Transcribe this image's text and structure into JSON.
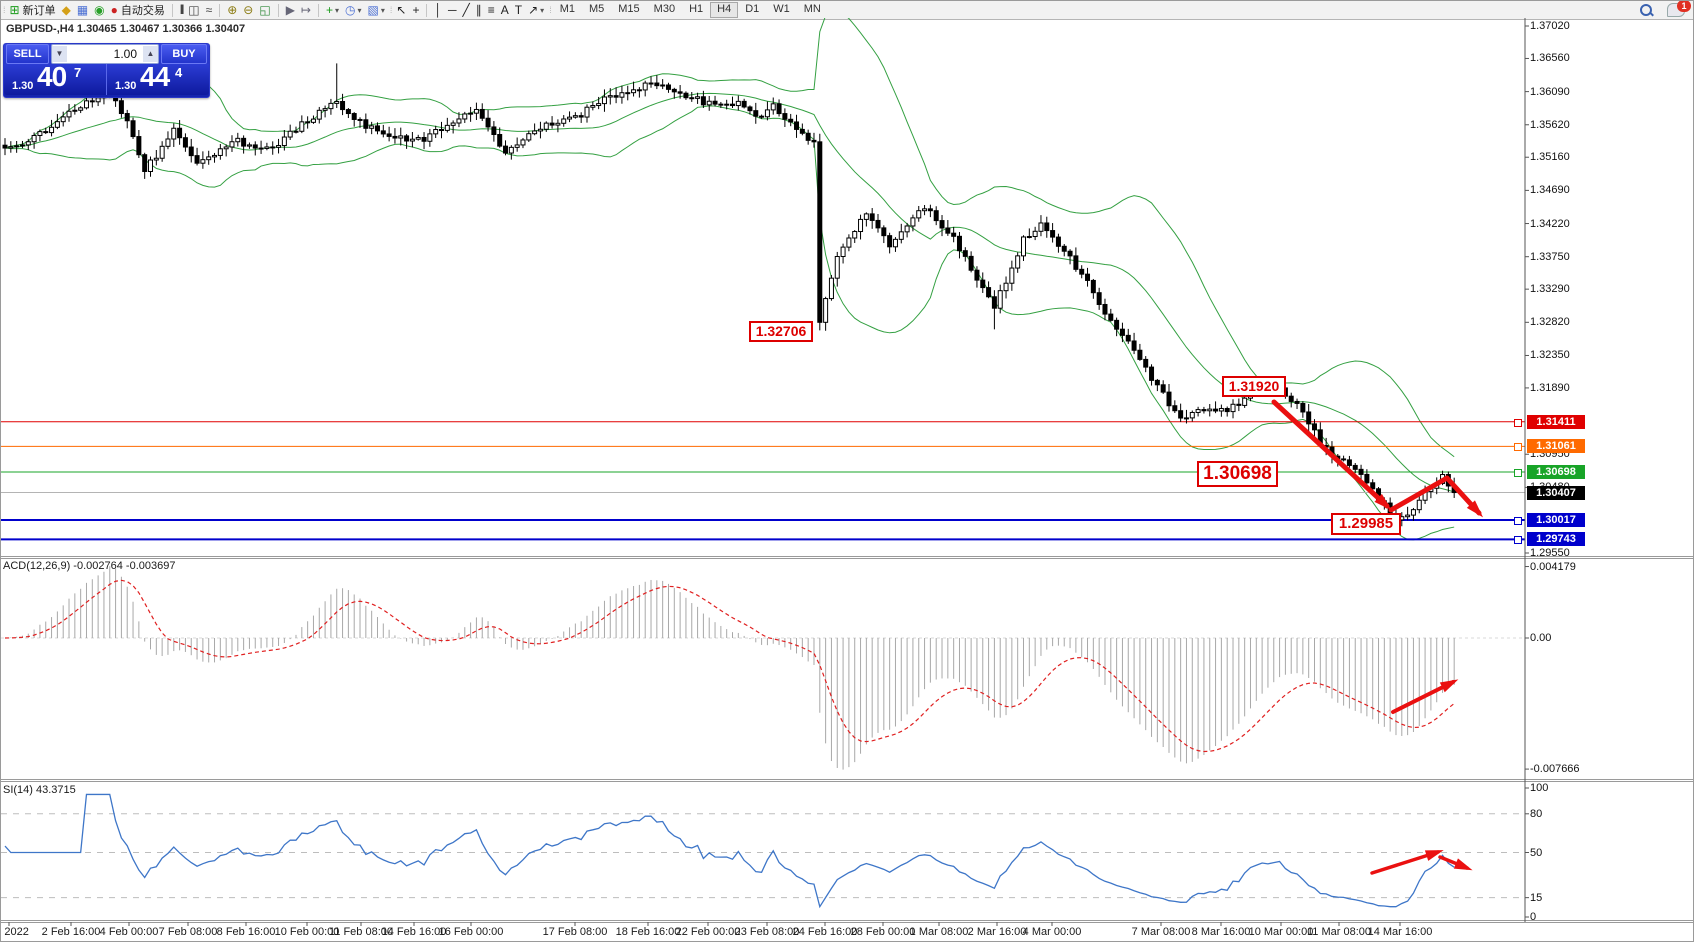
{
  "toolbar": {
    "items": [
      {
        "name": "toolbar-handle",
        "type": "handle"
      },
      {
        "name": "new-order-button",
        "glyph": "⊞",
        "color": "#1a9c1a",
        "label": "新订单",
        "interactable": true
      },
      {
        "name": "styles-button",
        "glyph": "◆",
        "color": "#d4a017",
        "interactable": true
      },
      {
        "name": "new-chart-button",
        "glyph": "▦",
        "color": "#4a6fd4",
        "interactable": true
      },
      {
        "name": "signals-button",
        "glyph": "◉",
        "color": "#28a028",
        "interactable": true
      },
      {
        "name": "autotrade-button",
        "glyph": "●",
        "color": "#cc2222",
        "label": "自动交易",
        "interactable": true
      },
      {
        "name": "toolbar-separator",
        "type": "sep"
      },
      {
        "name": "bar-chart-button",
        "glyph": "|||",
        "color": "#444",
        "interactable": true
      },
      {
        "name": "candle-chart-button",
        "glyph": "◫",
        "color": "#444",
        "interactable": true
      },
      {
        "name": "line-chart-button",
        "glyph": "≈",
        "color": "#444",
        "interactable": true
      },
      {
        "name": "toolbar-separator",
        "type": "sep"
      },
      {
        "name": "zoom-in-button",
        "glyph": "⊕",
        "color": "#8a7a10",
        "interactable": true
      },
      {
        "name": "zoom-out-button",
        "glyph": "⊖",
        "color": "#8a7a10",
        "interactable": true
      },
      {
        "name": "tile-windows-button",
        "glyph": "◱",
        "color": "#2f8a3a",
        "interactable": true
      },
      {
        "name": "toolbar-separator",
        "type": "sep"
      },
      {
        "name": "auto-scroll-button",
        "glyph": "▶",
        "color": "#667",
        "interactable": true
      },
      {
        "name": "chart-shift-button",
        "glyph": "↦",
        "color": "#667",
        "interactable": true
      },
      {
        "name": "toolbar-separator",
        "type": "sep"
      },
      {
        "name": "indicators-button",
        "glyph": "+",
        "color": "#1a9c1a",
        "dropdown": true,
        "interactable": true
      },
      {
        "name": "periods-button",
        "glyph": "◷",
        "color": "#4a6fd4",
        "dropdown": true,
        "interactable": true
      },
      {
        "name": "templates-button",
        "glyph": "▧",
        "color": "#4a6fd4",
        "dropdown": true,
        "interactable": true
      },
      {
        "name": "toolbar-handle",
        "type": "handle"
      },
      {
        "name": "cursor-button",
        "glyph": "↖",
        "color": "#222",
        "interactable": true
      },
      {
        "name": "crosshair-button",
        "glyph": "+",
        "color": "#222",
        "interactable": true
      },
      {
        "name": "toolbar-separator",
        "type": "sep"
      },
      {
        "name": "vertical-line-button",
        "glyph": "│",
        "color": "#222",
        "interactable": true
      },
      {
        "name": "horizontal-line-button",
        "glyph": "─",
        "color": "#222",
        "interactable": true
      },
      {
        "name": "trendline-button",
        "glyph": "╱",
        "color": "#222",
        "interactable": true
      },
      {
        "name": "channel-button",
        "glyph": "∥",
        "color": "#222",
        "interactable": true
      },
      {
        "name": "fibonacci-button",
        "glyph": "≡",
        "color": "#222",
        "interactable": true
      },
      {
        "name": "text-button",
        "glyph": "A",
        "color": "#222",
        "interactable": true
      },
      {
        "name": "text-label-button",
        "glyph": "T",
        "color": "#222",
        "interactable": true
      },
      {
        "name": "arrows-button",
        "glyph": "↗",
        "color": "#222",
        "dropdown": true,
        "interactable": true
      },
      {
        "name": "toolbar-handle",
        "type": "handle"
      }
    ],
    "timeframes": [
      "M1",
      "M5",
      "M15",
      "M30",
      "H1",
      "H4",
      "D1",
      "W1",
      "MN"
    ],
    "active_timeframe": "H4",
    "notification_count": "1"
  },
  "chart_header": {
    "title": "GBPUSD-,H4  1.30465 1.30467 1.30366 1.30407"
  },
  "trade_panel": {
    "sell_label": "SELL",
    "buy_label": "BUY",
    "volume": "1.00",
    "sell_price": {
      "prefix": "1.30",
      "big": "40",
      "sup": "7"
    },
    "buy_price": {
      "prefix": "1.30",
      "big": "44",
      "sup": "4"
    }
  },
  "chart_data": {
    "type": "candlestick",
    "symbol": "GBPUSD-",
    "timeframe": "H4",
    "last_bar": {
      "open": "1.30465",
      "high": "1.30467",
      "low": "1.30366",
      "close": "1.30407"
    },
    "candle_count": 250,
    "price_anchors": [
      [
        0,
        1.3525
      ],
      [
        6,
        1.3548
      ],
      [
        12,
        1.3585
      ],
      [
        18,
        1.3612
      ],
      [
        22,
        1.3548
      ],
      [
        24,
        1.3496
      ],
      [
        29,
        1.3553
      ],
      [
        33,
        1.3506
      ],
      [
        40,
        1.3538
      ],
      [
        46,
        1.3528
      ],
      [
        52,
        1.3568
      ],
      [
        57,
        1.3595
      ],
      [
        60,
        1.357
      ],
      [
        66,
        1.3544
      ],
      [
        72,
        1.3542
      ],
      [
        81,
        1.3582
      ],
      [
        86,
        1.3522
      ],
      [
        92,
        1.3558
      ],
      [
        98,
        1.3572
      ],
      [
        104,
        1.3602
      ],
      [
        111,
        1.3619
      ],
      [
        118,
        1.36
      ],
      [
        123,
        1.3588
      ],
      [
        126,
        1.3596
      ],
      [
        130,
        1.357
      ],
      [
        132,
        1.3588
      ],
      [
        136,
        1.3552
      ],
      [
        139,
        1.354
      ],
      [
        140,
        1.3282
      ],
      [
        141,
        1.332
      ],
      [
        143,
        1.3372
      ],
      [
        148,
        1.344
      ],
      [
        152,
        1.3392
      ],
      [
        158,
        1.3445
      ],
      [
        163,
        1.3402
      ],
      [
        168,
        1.333
      ],
      [
        170,
        1.3302
      ],
      [
        172,
        1.3342
      ],
      [
        175,
        1.34
      ],
      [
        178,
        1.342
      ],
      [
        183,
        1.3372
      ],
      [
        186,
        1.3341
      ],
      [
        189,
        1.3292
      ],
      [
        194,
        1.3242
      ],
      [
        197,
        1.3202
      ],
      [
        200,
        1.3168
      ],
      [
        202,
        1.3142
      ],
      [
        206,
        1.316
      ],
      [
        210,
        1.3154
      ],
      [
        213,
        1.3176
      ],
      [
        217,
        1.3186
      ],
      [
        219,
        1.3189
      ],
      [
        221,
        1.317
      ],
      [
        223,
        1.3155
      ],
      [
        226,
        1.3112
      ],
      [
        228,
        1.3092
      ],
      [
        232,
        1.3076
      ],
      [
        236,
        1.3031
      ],
      [
        239,
        1.3002
      ],
      [
        241,
        1.301
      ],
      [
        244,
        1.3038
      ],
      [
        247,
        1.3064
      ],
      [
        248,
        1.305
      ],
      [
        249,
        1.30407
      ]
    ],
    "wick_overrides": {
      "57": {
        "high": 1.3649
      },
      "140": {
        "low": 1.32706
      },
      "170": {
        "low": 1.3272
      },
      "219": {
        "high": 1.3192
      },
      "239": {
        "low": 1.29985
      }
    },
    "y_axis": {
      "ticks": [
        "1.37020",
        "1.36560",
        "1.36090",
        "1.35620",
        "1.35160",
        "1.34690",
        "1.34220",
        "1.33750",
        "1.33290",
        "1.32820",
        "1.32350",
        "1.31890",
        "1.30950",
        "1.30480",
        "1.29550"
      ]
    },
    "x_axis": {
      "labels": [
        "eb 2022",
        "2 Feb 16:00",
        "4 Feb 00:00",
        "7 Feb 08:00",
        "8 Feb 16:00",
        "10 Feb 00:00",
        "11 Feb 08:00",
        "14 Feb 16:00",
        "16 Feb 00:00",
        "17 Feb 08:00",
        "18 Feb 16:00",
        "22 Feb 00:00",
        "23 Feb 08:00",
        "24 Feb 16:00",
        "28 Feb 00:00",
        "1 Mar 08:00",
        "2 Mar 16:00",
        "4 Mar 00:00",
        "7 Mar 08:00",
        "8 Mar 16:00",
        "10 Mar 00:00",
        "11 Mar 08:00",
        "14 Mar 16:00"
      ]
    },
    "horizontal_lines": [
      {
        "price": 1.31411,
        "label": "1.31411",
        "color": "#e00000",
        "width": 1
      },
      {
        "price": 1.31061,
        "label": "1.31061",
        "color": "#ff6a00",
        "width": 1
      },
      {
        "price": 1.30698,
        "label": "1.30698",
        "color": "#18a428",
        "width": 1
      },
      {
        "price": 1.30017,
        "label": "1.30017",
        "color": "#0000cc",
        "width": 2
      },
      {
        "price": 1.29743,
        "label": "1.29743",
        "color": "#0000cc",
        "width": 2
      }
    ],
    "bid_line": {
      "price": 1.30407,
      "label": "1.30407",
      "line_color": "#b4b4b4",
      "badge_color": "#000000"
    },
    "callouts": [
      {
        "text": "1.32706"
      },
      {
        "text": "1.31920"
      },
      {
        "text": "1.30698"
      },
      {
        "text": "1.29985"
      }
    ],
    "bollinger_color": "#34a042",
    "macd": {
      "label": "ACD(12,26,9) -0.002764 -0.003697",
      "axis_ticks": [
        "0.004179",
        "0.00",
        "-0.007666"
      ],
      "histogram_color": "#a8a8a8",
      "signal_color": "#e02020"
    },
    "rsi": {
      "label": "SI(14) 43.3715",
      "axis_ticks": [
        "100",
        "80",
        "50",
        "15",
        "0"
      ],
      "levels": [
        80,
        50,
        15
      ],
      "line_color": "#3e76c8"
    },
    "annotation_color": "#ea1010"
  }
}
